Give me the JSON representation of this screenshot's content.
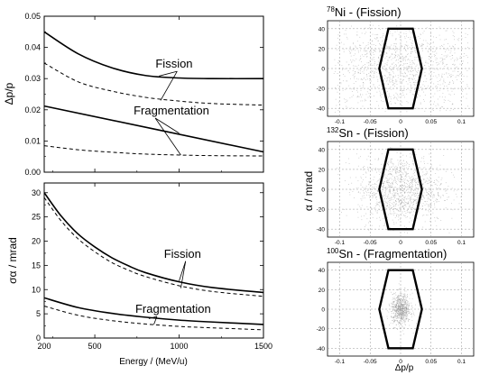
{
  "chart_data": [
    {
      "id": "dpp-vs-energy",
      "type": "line",
      "xlim": [
        200,
        1500
      ],
      "xticks": [
        200,
        500,
        1000,
        1500
      ],
      "ylim": [
        0,
        0.05
      ],
      "yticks": [
        "0.00",
        "0.01",
        "0.02",
        "0.03",
        "0.04",
        "0.05"
      ],
      "ylabel": "Δp/p",
      "series": [
        {
          "line": "solid",
          "x": [
            200,
            400,
            600,
            800,
            1000,
            1200,
            1500
          ],
          "values": [
            0.045,
            0.038,
            0.0335,
            0.031,
            0.0302,
            0.03,
            0.03
          ]
        },
        {
          "line": "dashed",
          "x": [
            200,
            400,
            600,
            800,
            1000,
            1200,
            1500
          ],
          "values": [
            0.035,
            0.029,
            0.026,
            0.024,
            0.0228,
            0.022,
            0.0215
          ]
        },
        {
          "line": "solid",
          "x": [
            200,
            1500
          ],
          "values": [
            0.0212,
            0.0065
          ]
        },
        {
          "line": "dashed",
          "x": [
            200,
            400,
            600,
            800,
            1000,
            1200,
            1500
          ],
          "values": [
            0.0085,
            0.0072,
            0.0064,
            0.0058,
            0.0055,
            0.0053,
            0.0052
          ]
        }
      ],
      "annotations": [
        {
          "text": "Fission",
          "x": 860,
          "y": 0.0335,
          "to": [
            [
              880,
              0.0308
            ],
            [
              890,
              0.023
            ]
          ]
        },
        {
          "text": "Fragmentation",
          "x": 730,
          "y": 0.0185,
          "to": [
            [
              1000,
              0.0125
            ],
            [
              1010,
              0.0055
            ]
          ]
        }
      ]
    },
    {
      "id": "sigma-alpha-vs-energy",
      "type": "line",
      "xlim": [
        200,
        1500
      ],
      "xticks": [
        200,
        500,
        1000,
        1500
      ],
      "xlabel": "Energy / (MeV/u)",
      "ylim": [
        0,
        32
      ],
      "yticks": [
        0,
        5,
        10,
        15,
        20,
        25,
        30
      ],
      "ylabel": "σα / mrad",
      "series": [
        {
          "line": "solid",
          "x": [
            200,
            300,
            400,
            500,
            600,
            700,
            800,
            1000,
            1200,
            1500
          ],
          "values": [
            30,
            25.2,
            21.5,
            18.8,
            16.6,
            14.9,
            13.5,
            11.6,
            10.4,
            9.4
          ]
        },
        {
          "line": "dashed",
          "x": [
            200,
            300,
            400,
            500,
            600,
            700,
            800,
            1000,
            1200,
            1500
          ],
          "values": [
            29,
            24.2,
            20.5,
            17.8,
            15.6,
            14.0,
            12.7,
            10.8,
            9.6,
            8.6
          ]
        },
        {
          "line": "solid",
          "x": [
            200,
            400,
            600,
            800,
            1000,
            1200,
            1500
          ],
          "values": [
            8.3,
            6.3,
            5.1,
            4.3,
            3.7,
            3.3,
            2.8
          ]
        },
        {
          "line": "dashed",
          "x": [
            200,
            400,
            600,
            800,
            1000,
            1200,
            1500
          ],
          "values": [
            6.6,
            4.7,
            3.6,
            2.9,
            2.4,
            2.1,
            1.7
          ]
        }
      ],
      "annotations": [
        {
          "text": "Fission",
          "x": 910,
          "y": 16.6,
          "to": [
            [
              1000,
              11.8
            ],
            [
              1010,
              10.3
            ]
          ]
        },
        {
          "text": "Fragmentation",
          "x": 740,
          "y": 5.2,
          "to": [
            [
              820,
              4.0
            ],
            [
              850,
              2.8
            ]
          ]
        }
      ]
    },
    {
      "id": "scatter-ni78",
      "type": "scatter",
      "title_sup": "78",
      "title": "Ni - (Fission)",
      "xlim": [
        -0.12,
        0.12
      ],
      "xticks": [
        "-0.1",
        "-0.05",
        "0",
        "0.05",
        "0.1"
      ],
      "ylim": [
        -48,
        48
      ],
      "yticks": [
        40,
        20,
        0,
        -20,
        -40
      ],
      "acceptance_polygon": [
        [
          -0.035,
          0
        ],
        [
          -0.02,
          40
        ],
        [
          0.02,
          40
        ],
        [
          0.035,
          0
        ],
        [
          0.02,
          -40
        ],
        [
          -0.02,
          -40
        ]
      ],
      "cloud": {
        "sx": 0.075,
        "sy": 23,
        "n": 1400
      }
    },
    {
      "id": "scatter-sn132",
      "type": "scatter",
      "title_sup": "132",
      "title": "Sn - (Fission)",
      "xlim": [
        -0.12,
        0.12
      ],
      "xticks": [
        "-0.1",
        "-0.05",
        "0",
        "0.05",
        "0.1"
      ],
      "ylim": [
        -48,
        48
      ],
      "yticks": [
        40,
        20,
        0,
        -20,
        -40
      ],
      "ylabel": "α / mrad",
      "acceptance_polygon": [
        [
          -0.035,
          0
        ],
        [
          -0.02,
          40
        ],
        [
          0.02,
          40
        ],
        [
          0.035,
          0
        ],
        [
          0.02,
          -40
        ],
        [
          -0.02,
          -40
        ]
      ],
      "cloud": {
        "sx": 0.035,
        "sy": 17,
        "n": 1200
      }
    },
    {
      "id": "scatter-sn100",
      "type": "scatter",
      "title_sup": "100",
      "title": "Sn - (Fragmentation)",
      "xlim": [
        -0.12,
        0.12
      ],
      "xticks": [
        "-0.1",
        "-0.05",
        "0",
        "0.05",
        "0.1"
      ],
      "xlabel": "Δp/p",
      "ylim": [
        -48,
        48
      ],
      "yticks": [
        40,
        20,
        0,
        -20,
        -40
      ],
      "acceptance_polygon": [
        [
          -0.035,
          0
        ],
        [
          -0.02,
          40
        ],
        [
          0.02,
          40
        ],
        [
          0.035,
          0
        ],
        [
          0.02,
          -40
        ],
        [
          -0.02,
          -40
        ]
      ],
      "cloud": {
        "sx": 0.008,
        "sy": 8,
        "n": 700
      }
    }
  ]
}
